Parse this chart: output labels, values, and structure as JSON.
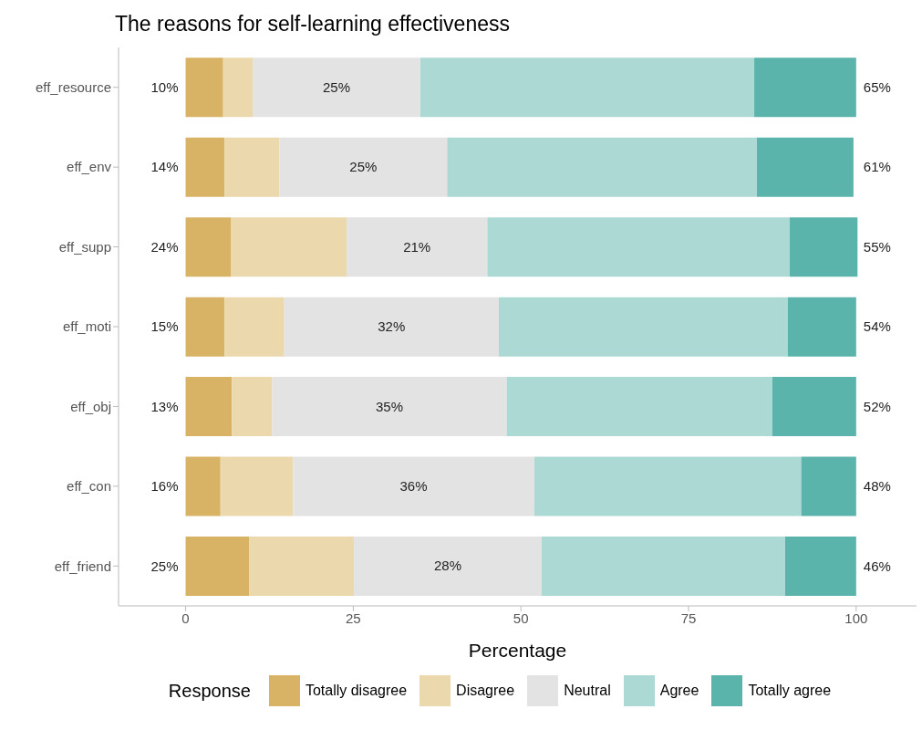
{
  "chart_data": {
    "type": "bar",
    "orientation": "horizontal",
    "stacked": true,
    "title": "The reasons for self-learning effectiveness",
    "xlabel": "Percentage",
    "legend_title": "Response",
    "legend": "bottom",
    "grid": false,
    "categories": [
      "eff_resource",
      "eff_env",
      "eff_supp",
      "eff_moti",
      "eff_obj",
      "eff_con",
      "eff_friend"
    ],
    "xlim": [
      -10,
      109
    ],
    "xticks": [
      0,
      25,
      50,
      75,
      100
    ],
    "series": [
      {
        "name": "Totally disagree",
        "color": "#d8b365",
        "values": [
          5.6,
          5.8,
          6.8,
          5.8,
          6.9,
          5.2,
          9.5
        ]
      },
      {
        "name": "Disagree",
        "color": "#ebd8ad",
        "values": [
          4.4,
          8.2,
          17.2,
          8.9,
          6.0,
          10.8,
          15.6
        ]
      },
      {
        "name": "Neutral",
        "color": "#e3e3e3",
        "values": [
          25,
          25,
          21,
          32,
          35,
          36,
          28
        ],
        "value_labels": [
          "25%",
          "25%",
          "21%",
          "32%",
          "35%",
          "36%",
          "28%"
        ]
      },
      {
        "name": "Agree",
        "color": "#acd9d4",
        "values": [
          49.8,
          46.2,
          45.1,
          43.1,
          39.6,
          39.8,
          36.3
        ]
      },
      {
        "name": "Totally agree",
        "color": "#5ab4ac",
        "values": [
          15.2,
          14.4,
          10.1,
          10.2,
          12.5,
          8.2,
          10.6
        ]
      }
    ],
    "annotations": [
      "10%",
      "14%",
      "24%",
      "15%",
      "13%",
      "16%",
      "25%",
      "65%",
      "61%",
      "55%",
      "54%",
      "52%",
      "48%",
      "46%"
    ]
  }
}
